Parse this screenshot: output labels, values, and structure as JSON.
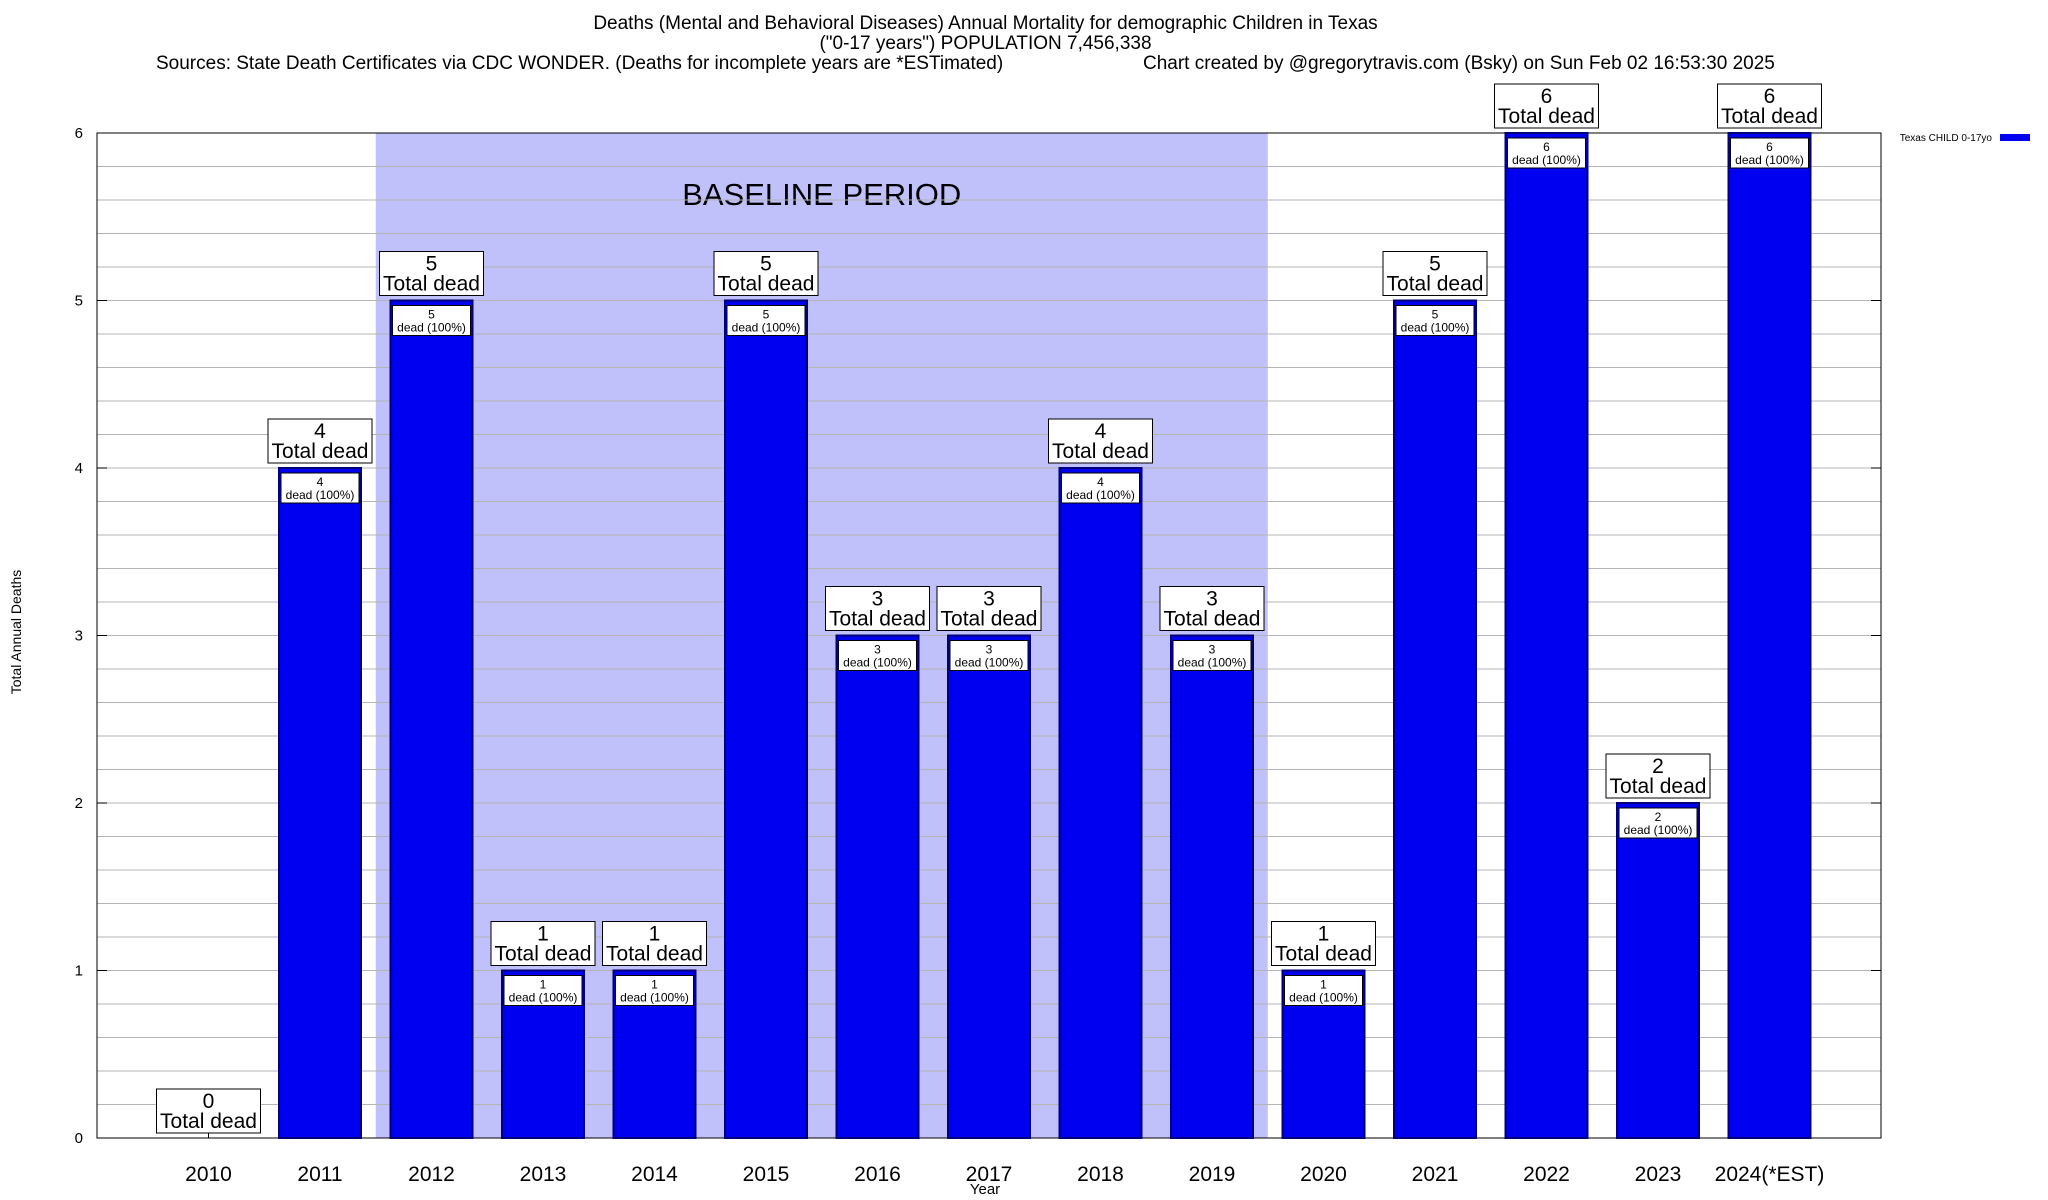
{
  "title_line1": "Deaths (Mental and Behavioral Diseases) Annual Mortality for demographic Children in Texas",
  "title_line2": "(\"0-17 years\") POPULATION 7,456,338",
  "sources": "Sources: State Death Certificates via CDC WONDER. (Deaths for incomplete years are *ESTimated)",
  "credit": "Chart created by @gregorytravis.com (Bsky) on Sun Feb 02 16:53:30 2025",
  "colors": {
    "bar": "#0000f0",
    "bar_border": "#00007a",
    "baseline_fill": "#c0c0fa",
    "grid": "#b4b4b4"
  },
  "chart_data": {
    "type": "bar",
    "categories": [
      "2010",
      "2011",
      "2012",
      "2013",
      "2014",
      "2015",
      "2016",
      "2017",
      "2018",
      "2019",
      "2020",
      "2021",
      "2022",
      "2023",
      "2024(*EST)"
    ],
    "series": [
      {
        "name": "Texas CHILD 0-17yo",
        "values": [
          0,
          4,
          5,
          1,
          1,
          5,
          3,
          3,
          4,
          3,
          1,
          5,
          6,
          2,
          6
        ]
      }
    ],
    "xlabel": "Year",
    "ylabel": "Total Annual Deaths",
    "ylim": [
      0,
      6
    ],
    "yticks": [
      0,
      1,
      2,
      3,
      4,
      5,
      6
    ],
    "grid": true,
    "legend_position": "top-right",
    "total_label": "Total dead",
    "inner_label_suffix": "dead (100%)",
    "baseline": {
      "label": "BASELINE PERIOD",
      "from": "2012",
      "to": "2019"
    }
  }
}
